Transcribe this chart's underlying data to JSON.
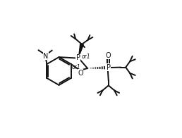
{
  "bg_color": "#ffffff",
  "line_color": "#111111",
  "lw": 1.4,
  "fs": 7.0,
  "fs_small": 5.5,
  "figsize": [
    2.58,
    1.96
  ],
  "dpi": 100,
  "xlim": [
    0,
    10
  ],
  "ylim": [
    0,
    7.6
  ]
}
